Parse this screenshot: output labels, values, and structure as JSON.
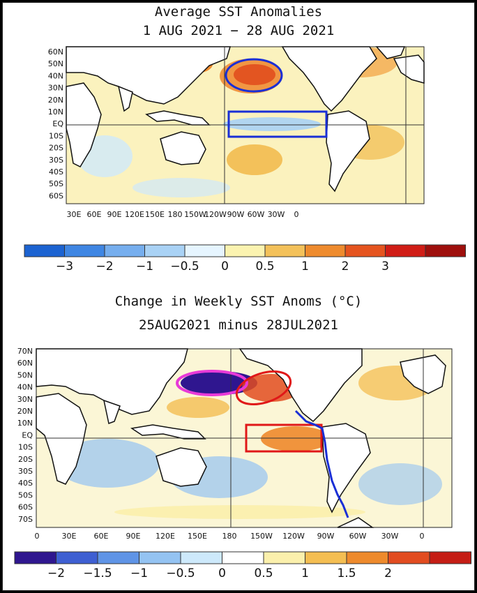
{
  "top_panel": {
    "title": "Average SST Anomalies",
    "subtitle": "1 AUG 2021 − 28 AUG 2021",
    "lat_labels": [
      "60N",
      "50N",
      "40N",
      "30N",
      "20N",
      "10N",
      "EQ",
      "10S",
      "20S",
      "30S",
      "40S",
      "50S",
      "60S"
    ],
    "lon_labels": [
      "30E",
      "60E",
      "90E",
      "120E",
      "150E",
      "180",
      "150W",
      "120W",
      "90W",
      "60W",
      "30W",
      "0"
    ],
    "colorbar_labels": [
      "−3",
      "−2",
      "−1",
      "−0.5",
      "0",
      "0.5",
      "1",
      "2",
      "3"
    ],
    "colorbar_colors": [
      "#1c63d1",
      "#3f86e3",
      "#76aeee",
      "#a9d2f5",
      "#e6f5ff",
      "#fbf3b0",
      "#f3c15a",
      "#ee8b2e",
      "#e5541f",
      "#d01d16",
      "#9e0f0c"
    ]
  },
  "bottom_panel": {
    "title": "Change in Weekly SST Anoms (°C)",
    "subtitle": "25AUG2021 minus 28JUL2021",
    "lat_labels": [
      "70N",
      "60N",
      "50N",
      "40N",
      "30N",
      "20N",
      "10N",
      "EQ",
      "10S",
      "20S",
      "30S",
      "40S",
      "50S",
      "60S",
      "70S"
    ],
    "lon_labels": [
      "0",
      "30E",
      "60E",
      "90E",
      "120E",
      "150E",
      "180",
      "150W",
      "120W",
      "90W",
      "60W",
      "30W",
      "0"
    ],
    "colorbar_labels": [
      "−2",
      "−1.5",
      "−1",
      "−0.5",
      "0",
      "0.5",
      "1",
      "1.5",
      "2"
    ],
    "colorbar_colors": [
      "#2f168f",
      "#3e5fd2",
      "#5f94e6",
      "#94c3f2",
      "#cde9fb",
      "#ffffff",
      "#fbf0ac",
      "#f4be52",
      "#ee8a2c",
      "#e24c20",
      "#c51d15"
    ]
  },
  "colors": {
    "land": "#ffffff",
    "warm": "#f0a040",
    "cool": "#8fc4f2",
    "annotation_blue": "#1a2fd6",
    "annotation_red": "#e01818",
    "annotation_magenta": "#e83ad8"
  }
}
